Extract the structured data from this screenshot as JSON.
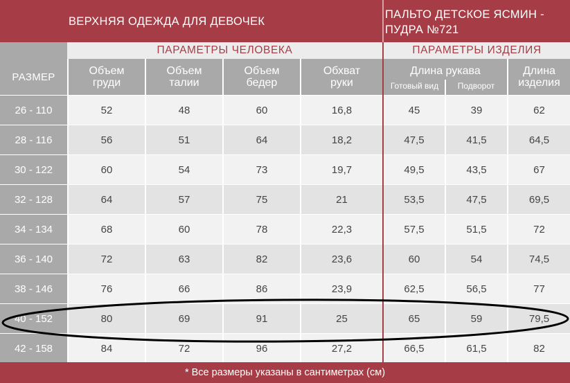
{
  "banner": {
    "left_title": "ВЕРХНЯЯ ОДЕЖДА ДЛЯ ДЕВОЧЕК",
    "right_title_line1": "ПАЛЬТО ДЕТСКОЕ ЯСМИН -",
    "right_title_line2": "ПУДРА №721"
  },
  "groups": {
    "person": "ПАРАМЕТРЫ ЧЕЛОВЕКА",
    "product": "ПАРАМЕТРЫ ИЗДЕЛИЯ"
  },
  "headers": {
    "size": "РАЗМЕР",
    "chest_1": "Объем",
    "chest_2": "груди",
    "waist_1": "Объем",
    "waist_2": "талии",
    "hips_1": "Объем",
    "hips_2": "бедер",
    "arm_1": "Обхват",
    "arm_2": "руки",
    "sleeve": "Длина рукава",
    "sleeve_ready": "Готовый вид",
    "sleeve_cuff": "Подворот",
    "length_1": "Длина",
    "length_2": "изделия"
  },
  "rows": [
    {
      "size": "26 - 110",
      "chest": "52",
      "waist": "48",
      "hips": "60",
      "arm": "16,8",
      "ready": "45",
      "cuff": "39",
      "length": "62"
    },
    {
      "size": "28 - 116",
      "chest": "56",
      "waist": "51",
      "hips": "64",
      "arm": "18,2",
      "ready": "47,5",
      "cuff": "41,5",
      "length": "64,5"
    },
    {
      "size": "30 - 122",
      "chest": "60",
      "waist": "54",
      "hips": "73",
      "arm": "19,7",
      "ready": "49,5",
      "cuff": "43,5",
      "length": "67"
    },
    {
      "size": "32 - 128",
      "chest": "64",
      "waist": "57",
      "hips": "75",
      "arm": "21",
      "ready": "53,5",
      "cuff": "47,5",
      "length": "69,5"
    },
    {
      "size": "34 - 134",
      "chest": "68",
      "waist": "60",
      "hips": "78",
      "arm": "22,3",
      "ready": "57,5",
      "cuff": "51,5",
      "length": "72"
    },
    {
      "size": "36 - 140",
      "chest": "72",
      "waist": "63",
      "hips": "82",
      "arm": "23,6",
      "ready": "60",
      "cuff": "54",
      "length": "74,5"
    },
    {
      "size": "38 - 146",
      "chest": "76",
      "waist": "66",
      "hips": "86",
      "arm": "23,9",
      "ready": "62,5",
      "cuff": "56,5",
      "length": "77"
    },
    {
      "size": "40 - 152",
      "chest": "80",
      "waist": "69",
      "hips": "91",
      "arm": "25",
      "ready": "65",
      "cuff": "59",
      "length": "79,5"
    },
    {
      "size": "42 - 158",
      "chest": "84",
      "waist": "72",
      "hips": "96",
      "arm": "27,2",
      "ready": "66,5",
      "cuff": "61,5",
      "length": "82"
    }
  ],
  "highlighted_row": "40 - 152",
  "footer": "* Все размеры указаны в сантиметрах (см)",
  "colors": {
    "brand_red": "#a63c45",
    "header_gray": "#a9a9a9",
    "row_light": "#f2f2f2",
    "row_dark": "#e3e3e3",
    "annotation_ink": "#000000"
  }
}
